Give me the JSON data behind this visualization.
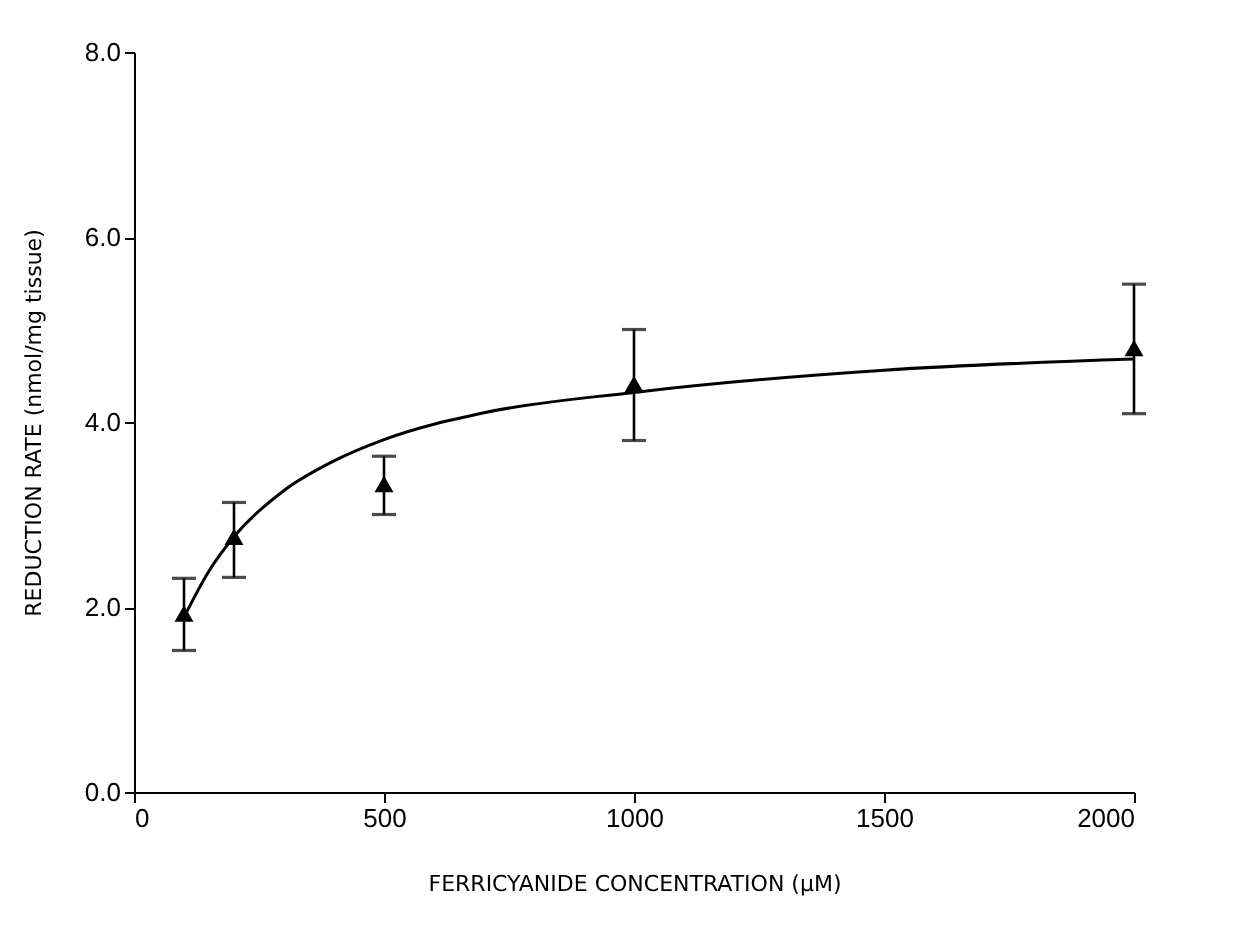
{
  "chart_data": {
    "type": "scatter",
    "xlabel": "FERRICYANIDE CONCENTRATION (μM)",
    "ylabel": "REDUCTION RATE (nmol/mg tissue)",
    "xlim": [
      0,
      2000
    ],
    "xticks": [
      0,
      500,
      1000,
      1500,
      2000
    ],
    "ylim": [
      0,
      8
    ],
    "yticks": [
      {
        "value": 0,
        "label": "0.0"
      },
      {
        "value": 2,
        "label": "2.0"
      },
      {
        "value": 4,
        "label": "4.0"
      },
      {
        "value": 6,
        "label": "6.0"
      },
      {
        "value": 8,
        "label": "8.0"
      }
    ],
    "series": [
      {
        "color": "#000000",
        "marker": "triangle",
        "x": [
          100,
          200,
          500,
          1000,
          2000
        ],
        "values": [
          1.93,
          2.76,
          3.33,
          4.41,
          4.8
        ],
        "errors": [
          [
            1.53,
            2.31
          ],
          [
            2.32,
            3.13
          ],
          [
            3.0,
            3.63
          ],
          [
            3.8,
            5.0
          ],
          [
            4.09,
            5.49
          ]
        ]
      },
      {
        "type": "line",
        "color": "#000000",
        "marker": "none",
        "line_style": "solid",
        "x": [
          100,
          150,
          200,
          300,
          400,
          500,
          700,
          1000,
          1500,
          2000
        ],
        "values": [
          1.89,
          2.39,
          2.76,
          3.26,
          3.58,
          3.81,
          4.1,
          4.32,
          4.56,
          4.68
        ]
      }
    ]
  }
}
